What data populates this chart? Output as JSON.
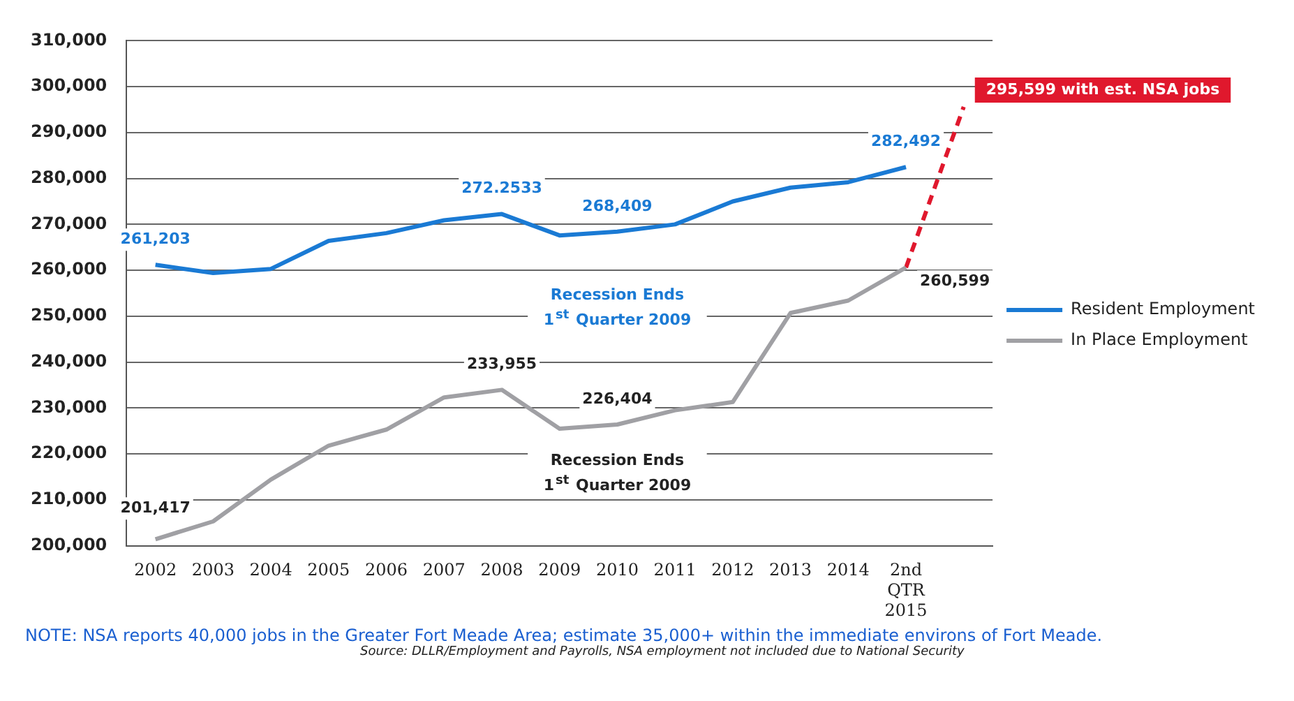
{
  "chart_data": {
    "type": "line",
    "categories": [
      "2002",
      "2003",
      "2004",
      "2005",
      "2006",
      "2007",
      "2008",
      "2009",
      "2010",
      "2011",
      "2012",
      "2013",
      "2014",
      "2nd QTR 2015",
      null
    ],
    "series": [
      {
        "name": "Resident Employment",
        "color": "#1a7ad4",
        "values": [
          261203,
          259400,
          260300,
          266400,
          268100,
          270900,
          272253,
          267600,
          268409,
          270000,
          275000,
          278000,
          279200,
          282492,
          null
        ],
        "value_labels": [
          "261,203",
          null,
          null,
          null,
          null,
          null,
          null,
          null,
          "268,409",
          null,
          null,
          null,
          null,
          "282,492",
          null
        ]
      },
      {
        "name": "In Place Employment",
        "color": "#a0a0a4",
        "values": [
          201417,
          205300,
          214400,
          221800,
          225300,
          232300,
          233955,
          225500,
          226404,
          229500,
          231300,
          250700,
          253400,
          260599,
          null
        ],
        "value_labels": [
          "201,417",
          null,
          null,
          null,
          null,
          null,
          "233,955",
          null,
          "226,404",
          null,
          null,
          null,
          null,
          "260,599",
          null
        ]
      },
      {
        "type": "line",
        "color": "#e0182d",
        "line_style": "dashed",
        "values": [
          null,
          null,
          null,
          null,
          null,
          null,
          null,
          null,
          null,
          null,
          null,
          null,
          null,
          260599,
          295599
        ],
        "value_labels": [
          null,
          null,
          null,
          null,
          null,
          null,
          null,
          null,
          null,
          null,
          null,
          null,
          null,
          null,
          "295,599 with est. NSA jobs"
        ]
      }
    ],
    "ylim": [
      200000,
      310000
    ],
    "yticks": [
      {
        "value": 200000,
        "label": "200,000"
      },
      {
        "value": 210000,
        "label": "210,000"
      },
      {
        "value": 220000,
        "label": "220,000"
      },
      {
        "value": 230000,
        "label": "230,000"
      },
      {
        "value": 240000,
        "label": "240,000"
      },
      {
        "value": 250000,
        "label": "250,000"
      },
      {
        "value": 260000,
        "label": "260,000"
      },
      {
        "value": 270000,
        "label": "270,000"
      },
      {
        "value": 280000,
        "label": "280,000"
      },
      {
        "value": 290000,
        "label": "290,000"
      },
      {
        "value": 300000,
        "label": "300,000"
      },
      {
        "value": 310000,
        "label": "310,000"
      }
    ],
    "grid": "y",
    "legend": "right",
    "marker": "none",
    "line_style": "solid",
    "annotations": [
      {
        "text": "272.2533",
        "x": "2008",
        "y": 272253
      },
      "Recession Ends 1$^{st}$ Quarter 2009",
      "Recession Ends 1$^{st}$ Quarter 2009",
      "NOTE: NSA reports 40,000 jobs in the Greater Fort Meade Area; estimate 35,000+ within the immediate environs of Fort Meade.",
      "Source: DLLR/Employment and Payrolls, NSA employment not included due to National Security"
    ]
  }
}
